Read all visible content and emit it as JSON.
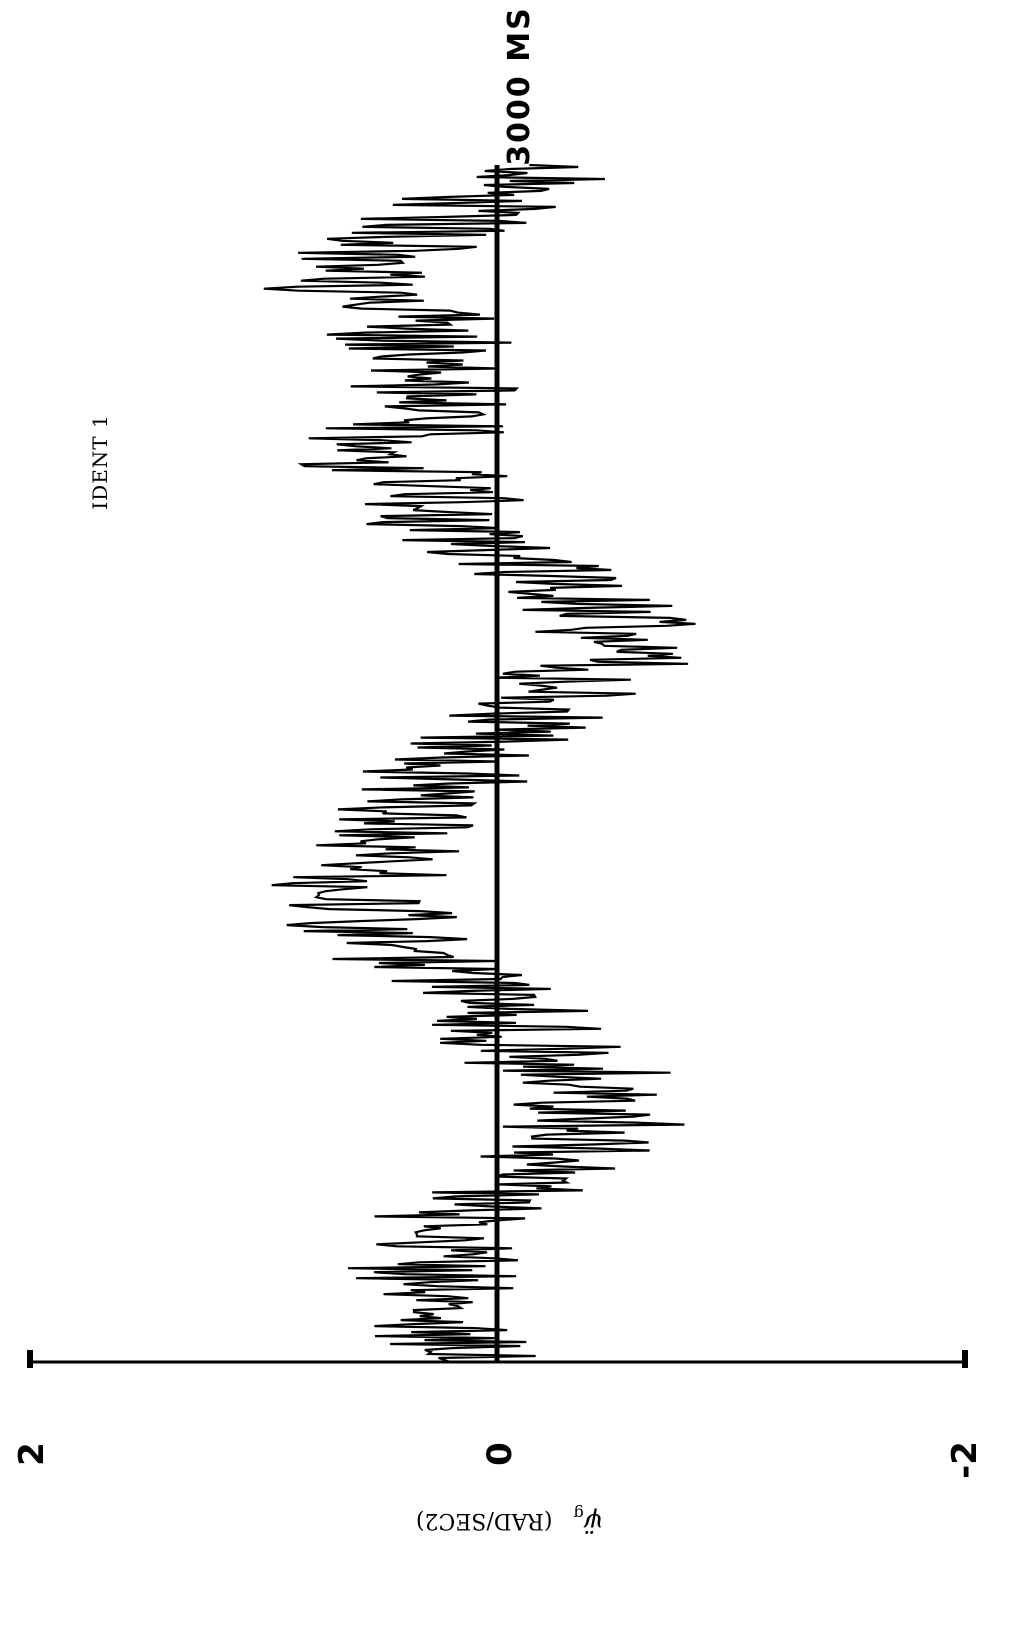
{
  "chart_data": {
    "type": "line",
    "annotation": "IDENT 1",
    "end_time_label": "3000 MS",
    "y_tick_labels": [
      "2",
      "0",
      "-2"
    ],
    "ylim": [
      -2,
      2
    ],
    "xlim_ms": [
      0,
      3000
    ],
    "ylabel_symbol": "ψ̈",
    "ylabel_subscript": "g",
    "ylabel_units": "(RAD/SEC2)",
    "grid": false,
    "series": [
      {
        "x_ms": [
          0,
          100,
          200,
          300,
          400,
          500,
          600,
          700,
          800,
          900,
          1000,
          1100,
          1200,
          1300,
          1400,
          1500,
          1600,
          1700,
          1800,
          1900,
          2000,
          2100,
          2200,
          2300,
          2400,
          2500,
          2600,
          2700,
          2800,
          2900,
          3000
        ],
        "mean": [
          0.1,
          0.2,
          0.3,
          0.25,
          0.1,
          -0.3,
          -0.4,
          -0.35,
          -0.15,
          0.05,
          0.3,
          0.5,
          0.6,
          0.5,
          0.3,
          0.1,
          -0.1,
          -0.4,
          -0.45,
          -0.35,
          -0.1,
          0.2,
          0.35,
          0.4,
          0.3,
          0.25,
          0.45,
          0.55,
          0.4,
          0.1,
          -0.2
        ],
        "spread": [
          0.45,
          0.45,
          0.45,
          0.45,
          0.45,
          0.45,
          0.5,
          0.5,
          0.45,
          0.45,
          0.5,
          0.5,
          0.5,
          0.45,
          0.45,
          0.45,
          0.45,
          0.5,
          0.5,
          0.5,
          0.45,
          0.45,
          0.5,
          0.5,
          0.45,
          0.45,
          0.5,
          0.5,
          0.5,
          0.45,
          0.45
        ]
      }
    ]
  }
}
